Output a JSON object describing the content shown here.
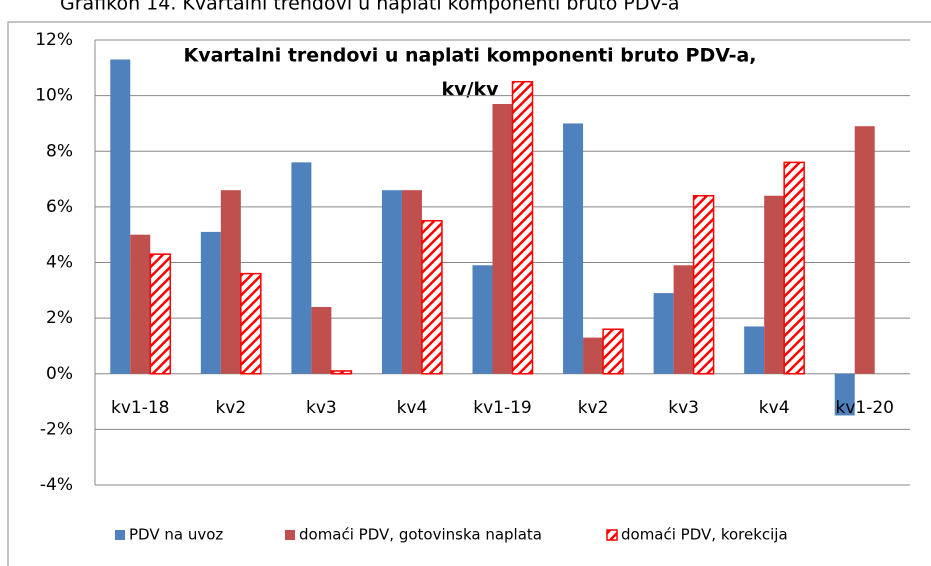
{
  "caption": "Grafikon  14. Kvartalni trendovi u naplati komponenti bruto PDV-a",
  "chart_data": {
    "type": "bar",
    "title": [
      "Kvartalni trendovi u naplati komponenti bruto PDV-a,",
      "kv/kv"
    ],
    "categories": [
      "kv1-18",
      "kv2",
      "kv3",
      "kv4",
      "kv1-19",
      "kv2",
      "kv3",
      "kv4",
      "kv1-20"
    ],
    "series": [
      {
        "name": "PDV na uvoz",
        "color": "#4f81bd",
        "values": [
          11.3,
          5.1,
          7.6,
          6.6,
          3.9,
          9.0,
          2.9,
          1.7,
          -1.5
        ]
      },
      {
        "name": "domaći PDV, gotovinska naplata",
        "color": "#c0504d",
        "values": [
          5.0,
          6.6,
          2.4,
          6.6,
          9.7,
          1.3,
          3.9,
          6.4,
          8.9
        ]
      },
      {
        "name": "domaći PDV, korekcija",
        "color": "#ff0000",
        "pattern": "hatch",
        "values": [
          4.3,
          3.6,
          0.1,
          5.5,
          10.5,
          1.6,
          6.4,
          7.6,
          null
        ]
      }
    ],
    "ylim": [
      -4,
      12
    ],
    "yticks": [
      {
        "value": -4,
        "label": "-4%"
      },
      {
        "value": -2,
        "label": "-2%"
      },
      {
        "value": 0,
        "label": "0%"
      },
      {
        "value": 2,
        "label": "2%"
      },
      {
        "value": 4,
        "label": "4%"
      },
      {
        "value": 6,
        "label": "6%"
      },
      {
        "value": 8,
        "label": "8%"
      },
      {
        "value": 10,
        "label": "10%"
      },
      {
        "value": 12,
        "label": "12%"
      }
    ],
    "grid": true,
    "legend": "bottom"
  }
}
